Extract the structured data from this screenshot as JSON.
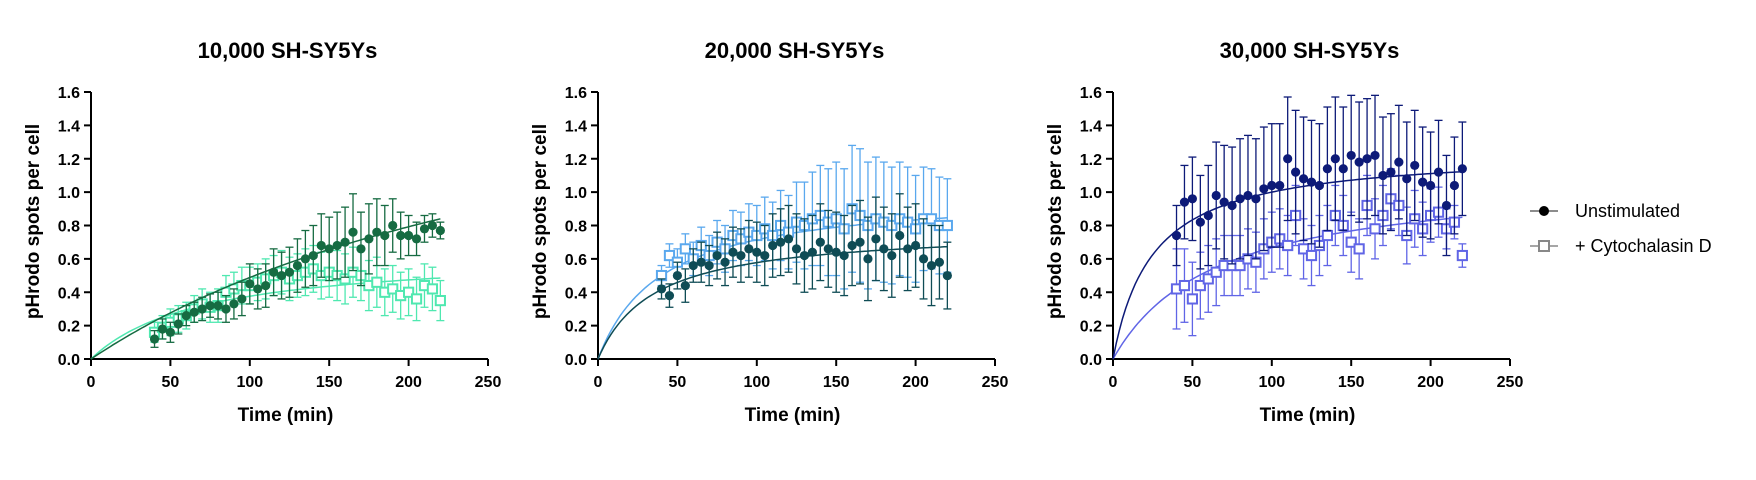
{
  "legend": {
    "items": [
      {
        "label": "Unstimulated",
        "marker": "filled-circle"
      },
      {
        "label": "+ Cytochalasin D",
        "marker": "open-square"
      }
    ],
    "position": "right",
    "marker_color": "#666666"
  },
  "chart_data": [
    {
      "type": "scatter",
      "title": "10,000 SH-SY5Ys",
      "xlabel": "Time (min)",
      "ylabel": "pHrodo spots per cell",
      "xlim": [
        0,
        250
      ],
      "ylim": [
        0,
        1.6
      ],
      "xticks": [
        0,
        50,
        100,
        150,
        200,
        250
      ],
      "yticks": [
        0.0,
        0.2,
        0.4,
        0.6,
        0.8,
        1.0,
        1.2,
        1.4,
        1.6
      ],
      "xtick_labels": [
        "0",
        "50",
        "100",
        "150",
        "200",
        "250"
      ],
      "ytick_labels": [
        "0.0",
        "0.2",
        "0.4",
        "0.6",
        "0.8",
        "1.0",
        "1.2",
        "1.4",
        "1.6"
      ],
      "x": [
        40,
        45,
        50,
        55,
        60,
        65,
        70,
        75,
        80,
        85,
        90,
        95,
        100,
        105,
        110,
        115,
        120,
        125,
        130,
        135,
        140,
        145,
        150,
        155,
        160,
        165,
        170,
        175,
        180,
        185,
        190,
        195,
        200,
        205,
        210,
        215,
        220
      ],
      "series": [
        {
          "name": "Unstimulated",
          "marker": "filled-circle",
          "color": "#166b42",
          "values": [
            0.12,
            0.18,
            0.16,
            0.21,
            0.26,
            0.28,
            0.3,
            0.32,
            0.32,
            0.3,
            0.33,
            0.36,
            0.45,
            0.42,
            0.44,
            0.52,
            0.5,
            0.52,
            0.56,
            0.6,
            0.62,
            0.68,
            0.66,
            0.68,
            0.7,
            0.76,
            0.66,
            0.72,
            0.76,
            0.74,
            0.8,
            0.74,
            0.74,
            0.72,
            0.78,
            0.8,
            0.77
          ],
          "errors": [
            0.05,
            0.06,
            0.06,
            0.06,
            0.06,
            0.06,
            0.07,
            0.07,
            0.08,
            0.08,
            0.09,
            0.1,
            0.12,
            0.12,
            0.13,
            0.14,
            0.14,
            0.15,
            0.16,
            0.17,
            0.18,
            0.19,
            0.19,
            0.2,
            0.21,
            0.23,
            0.22,
            0.21,
            0.2,
            0.18,
            0.16,
            0.14,
            0.12,
            0.1,
            0.08,
            0.07,
            0.05
          ],
          "fit": {
            "vmax": 2.1,
            "k": 330
          }
        },
        {
          "name": "+ Cytochalasin D",
          "marker": "open-square",
          "color": "#4fe8b0",
          "values": [
            0.16,
            0.19,
            0.22,
            0.24,
            0.26,
            0.3,
            0.33,
            0.31,
            0.32,
            0.4,
            0.42,
            0.44,
            0.44,
            0.46,
            0.48,
            0.5,
            0.52,
            0.48,
            0.5,
            0.52,
            0.54,
            0.5,
            0.52,
            0.5,
            0.48,
            0.52,
            0.5,
            0.44,
            0.46,
            0.4,
            0.42,
            0.38,
            0.4,
            0.36,
            0.44,
            0.42,
            0.35
          ],
          "errors": [
            0.06,
            0.07,
            0.08,
            0.08,
            0.08,
            0.08,
            0.09,
            0.09,
            0.1,
            0.1,
            0.1,
            0.11,
            0.11,
            0.11,
            0.12,
            0.12,
            0.13,
            0.13,
            0.13,
            0.14,
            0.14,
            0.14,
            0.15,
            0.15,
            0.15,
            0.15,
            0.15,
            0.15,
            0.15,
            0.14,
            0.14,
            0.14,
            0.14,
            0.13,
            0.13,
            0.13,
            0.12
          ],
          "fit": {
            "vmax": 0.64,
            "k": 70
          }
        }
      ]
    },
    {
      "type": "scatter",
      "title": "20,000 SH-SY5Ys",
      "xlabel": "Time (min)",
      "ylabel": "pHrodo spots per cell",
      "xlim": [
        0,
        250
      ],
      "ylim": [
        0,
        1.6
      ],
      "xticks": [
        0,
        50,
        100,
        150,
        200,
        250
      ],
      "yticks": [
        0.0,
        0.2,
        0.4,
        0.6,
        0.8,
        1.0,
        1.2,
        1.4,
        1.6
      ],
      "xtick_labels": [
        "0",
        "50",
        "100",
        "150",
        "200",
        "250"
      ],
      "ytick_labels": [
        "0.0",
        "0.2",
        "0.4",
        "0.6",
        "0.8",
        "1.0",
        "1.2",
        "1.4",
        "1.6"
      ],
      "x": [
        40,
        45,
        50,
        55,
        60,
        65,
        70,
        75,
        80,
        85,
        90,
        95,
        100,
        105,
        110,
        115,
        120,
        125,
        130,
        135,
        140,
        145,
        150,
        155,
        160,
        165,
        170,
        175,
        180,
        185,
        190,
        195,
        200,
        205,
        210,
        215,
        220
      ],
      "series": [
        {
          "name": "Unstimulated",
          "marker": "filled-circle",
          "color": "#0f4c55",
          "values": [
            0.42,
            0.38,
            0.5,
            0.44,
            0.56,
            0.58,
            0.56,
            0.62,
            0.58,
            0.64,
            0.62,
            0.66,
            0.64,
            0.62,
            0.68,
            0.7,
            0.72,
            0.66,
            0.62,
            0.64,
            0.7,
            0.66,
            0.64,
            0.62,
            0.68,
            0.7,
            0.6,
            0.72,
            0.66,
            0.62,
            0.74,
            0.66,
            0.68,
            0.6,
            0.56,
            0.58,
            0.5
          ],
          "errors": [
            0.06,
            0.07,
            0.08,
            0.1,
            0.1,
            0.12,
            0.12,
            0.14,
            0.14,
            0.15,
            0.16,
            0.17,
            0.18,
            0.18,
            0.19,
            0.2,
            0.2,
            0.21,
            0.22,
            0.22,
            0.23,
            0.23,
            0.24,
            0.24,
            0.24,
            0.25,
            0.25,
            0.25,
            0.25,
            0.25,
            0.25,
            0.25,
            0.25,
            0.24,
            0.24,
            0.22,
            0.2
          ],
          "fit": {
            "vmax": 0.78,
            "k": 35
          }
        },
        {
          "name": "+ Cytochalasin D",
          "marker": "open-square",
          "color": "#5aa8ee",
          "values": [
            0.5,
            0.62,
            0.58,
            0.66,
            0.6,
            0.68,
            0.62,
            0.7,
            0.66,
            0.74,
            0.72,
            0.76,
            0.74,
            0.78,
            0.74,
            0.8,
            0.76,
            0.82,
            0.8,
            0.84,
            0.86,
            0.82,
            0.84,
            0.78,
            0.9,
            0.86,
            0.8,
            0.84,
            0.82,
            0.8,
            0.84,
            0.82,
            0.78,
            0.84,
            0.84,
            0.8,
            0.8
          ],
          "errors": [
            0.06,
            0.07,
            0.08,
            0.09,
            0.1,
            0.11,
            0.12,
            0.13,
            0.14,
            0.15,
            0.16,
            0.17,
            0.18,
            0.19,
            0.2,
            0.21,
            0.22,
            0.24,
            0.26,
            0.28,
            0.3,
            0.32,
            0.34,
            0.36,
            0.38,
            0.4,
            0.38,
            0.37,
            0.36,
            0.35,
            0.34,
            0.33,
            0.32,
            0.31,
            0.3,
            0.29,
            0.28
          ],
          "fit": {
            "vmax": 1.0,
            "k": 40
          }
        }
      ]
    },
    {
      "type": "scatter",
      "title": "30,000 SH-SY5Ys",
      "xlabel": "Time (min)",
      "ylabel": "pHrodo spots per cell",
      "xlim": [
        0,
        250
      ],
      "ylim": [
        0,
        1.6
      ],
      "xticks": [
        0,
        50,
        100,
        150,
        200,
        250
      ],
      "yticks": [
        0.0,
        0.2,
        0.4,
        0.6,
        0.8,
        1.0,
        1.2,
        1.4,
        1.6
      ],
      "xtick_labels": [
        "0",
        "50",
        "100",
        "150",
        "200",
        "250"
      ],
      "ytick_labels": [
        "0.0",
        "0.2",
        "0.4",
        "0.6",
        "0.8",
        "1.0",
        "1.2",
        "1.4",
        "1.6"
      ],
      "x": [
        40,
        45,
        50,
        55,
        60,
        65,
        70,
        75,
        80,
        85,
        90,
        95,
        100,
        105,
        110,
        115,
        120,
        125,
        130,
        135,
        140,
        145,
        150,
        155,
        160,
        165,
        170,
        175,
        180,
        185,
        190,
        195,
        200,
        205,
        210,
        215,
        220
      ],
      "series": [
        {
          "name": "Unstimulated",
          "marker": "filled-circle",
          "color": "#0d1a78",
          "values": [
            0.74,
            0.94,
            0.96,
            0.82,
            0.86,
            0.98,
            0.94,
            0.92,
            0.96,
            0.98,
            0.96,
            1.02,
            1.04,
            1.04,
            1.2,
            1.12,
            1.08,
            1.06,
            1.04,
            1.14,
            1.2,
            1.14,
            1.22,
            1.18,
            1.2,
            1.22,
            1.1,
            1.12,
            1.18,
            1.08,
            1.16,
            1.06,
            1.04,
            1.12,
            0.92,
            1.04,
            1.14
          ],
          "errors": [
            0.18,
            0.22,
            0.25,
            0.28,
            0.3,
            0.32,
            0.34,
            0.35,
            0.36,
            0.36,
            0.36,
            0.37,
            0.37,
            0.37,
            0.37,
            0.37,
            0.37,
            0.37,
            0.37,
            0.37,
            0.37,
            0.37,
            0.36,
            0.36,
            0.36,
            0.36,
            0.35,
            0.35,
            0.34,
            0.34,
            0.33,
            0.33,
            0.32,
            0.31,
            0.3,
            0.29,
            0.28
          ],
          "fit": {
            "vmax": 1.25,
            "k": 25
          }
        },
        {
          "name": "+ Cytochalasin D",
          "marker": "open-square",
          "color": "#6065e6",
          "values": [
            0.42,
            0.44,
            0.36,
            0.44,
            0.48,
            0.52,
            0.56,
            0.56,
            0.56,
            0.6,
            0.58,
            0.66,
            0.7,
            0.72,
            0.68,
            0.86,
            0.66,
            0.62,
            0.68,
            0.74,
            0.86,
            0.8,
            0.7,
            0.66,
            0.92,
            0.78,
            0.86,
            0.96,
            0.92,
            0.74,
            0.84,
            0.78,
            0.86,
            0.88,
            0.78,
            0.82,
            0.62
          ],
          "errors": [
            0.24,
            0.22,
            0.22,
            0.2,
            0.2,
            0.2,
            0.18,
            0.18,
            0.18,
            0.18,
            0.18,
            0.18,
            0.18,
            0.18,
            0.18,
            0.18,
            0.18,
            0.18,
            0.18,
            0.18,
            0.18,
            0.18,
            0.18,
            0.18,
            0.18,
            0.18,
            0.18,
            0.18,
            0.18,
            0.17,
            0.17,
            0.16,
            0.16,
            0.15,
            0.12,
            0.1,
            0.07
          ],
          "fit": {
            "vmax": 1.1,
            "k": 65
          }
        }
      ]
    }
  ]
}
